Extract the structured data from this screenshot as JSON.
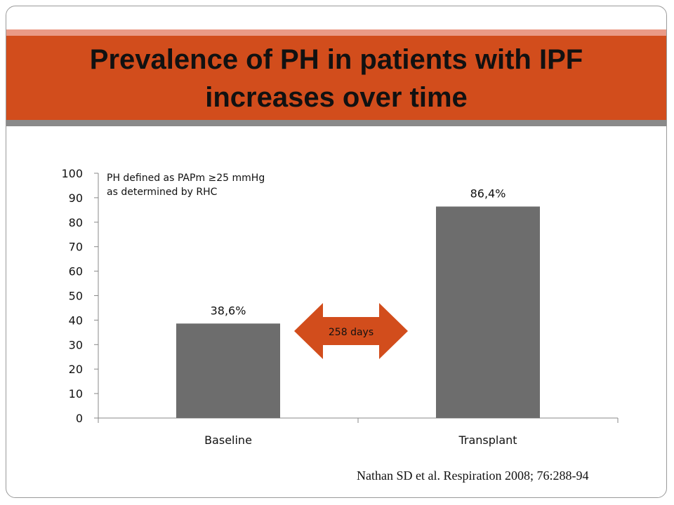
{
  "slide": {
    "title": "Prevalence of PH in patients with IPF increases over time",
    "colors": {
      "title_band": "#d24d1c",
      "title_stripe": "#ea9a86",
      "rule": "#8a8a8a",
      "bars": "#6d6d6d",
      "arrow": "#d24d1c"
    }
  },
  "note": {
    "line1": "PH defined as PAPm ≥25 mmHg",
    "line2": "as determined by RHC"
  },
  "arrow": {
    "label": "258 days"
  },
  "citation": "Nathan SD et al.  Respiration 2008; 76:288-94",
  "chart_data": {
    "type": "bar",
    "categories": [
      "Baseline",
      "Transplant"
    ],
    "values": [
      38.6,
      86.4
    ],
    "data_labels": [
      "38,6%",
      "86,4%"
    ],
    "ylim": [
      0,
      100
    ],
    "yticks": [
      0,
      10,
      20,
      30,
      40,
      50,
      60,
      70,
      80,
      90,
      100
    ],
    "ytick_labels": [
      "0",
      "10",
      "20",
      "30",
      "40",
      "50",
      "60",
      "70",
      "80",
      "90",
      "100"
    ],
    "grid": false,
    "legend": "none"
  }
}
